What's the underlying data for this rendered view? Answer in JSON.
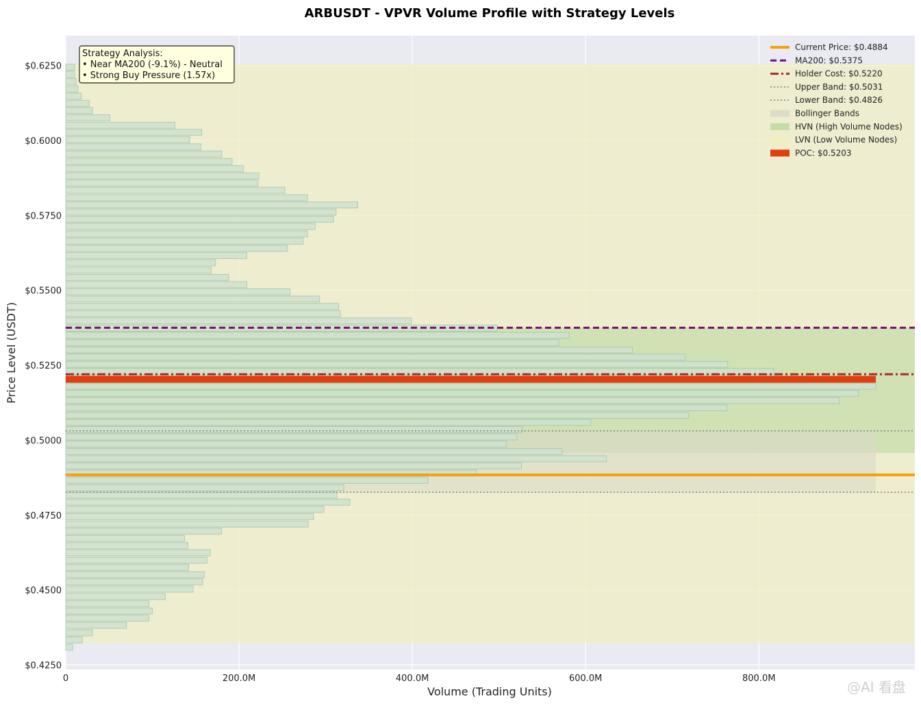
{
  "chart_data": {
    "type": "bar",
    "orientation": "horizontal",
    "title": "ARBUSDT - VPVR Volume Profile with Strategy Levels",
    "xlabel": "Volume (Trading Units)",
    "ylabel": "Price Level (USDT)",
    "xlim": [
      0,
      980
    ],
    "ylim": [
      0.4235,
      0.635
    ],
    "x_ticks": [
      {
        "value": 0,
        "label": "0"
      },
      {
        "value": 200,
        "label": "200.0M"
      },
      {
        "value": 400,
        "label": "400.0M"
      },
      {
        "value": 600,
        "label": "600.0M"
      },
      {
        "value": 800,
        "label": "800.0M"
      }
    ],
    "y_ticks": [
      {
        "value": 0.425,
        "label": "$0.4250"
      },
      {
        "value": 0.45,
        "label": "$0.4500"
      },
      {
        "value": 0.475,
        "label": "$0.4750"
      },
      {
        "value": 0.5,
        "label": "$0.5000"
      },
      {
        "value": 0.525,
        "label": "$0.5250"
      },
      {
        "value": 0.55,
        "label": "$0.5500"
      },
      {
        "value": 0.575,
        "label": "$0.5750"
      },
      {
        "value": 0.6,
        "label": "$0.6000"
      },
      {
        "value": 0.625,
        "label": "$0.6250"
      }
    ],
    "grid": true,
    "bin_height": 0.00242,
    "bins": {
      "prices": [
        0.4309,
        0.4333,
        0.4357,
        0.4382,
        0.4406,
        0.443,
        0.4454,
        0.4478,
        0.4503,
        0.4527,
        0.4551,
        0.4575,
        0.4599,
        0.4624,
        0.4648,
        0.4672,
        0.4696,
        0.472,
        0.4745,
        0.4769,
        0.4793,
        0.4817,
        0.4841,
        0.4866,
        0.489,
        0.4914,
        0.4938,
        0.4962,
        0.4987,
        0.5011,
        0.5035,
        0.5059,
        0.5083,
        0.5108,
        0.5132,
        0.5156,
        0.518,
        0.5204,
        0.5229,
        0.5253,
        0.5277,
        0.5301,
        0.5325,
        0.535,
        0.5374,
        0.5398,
        0.5422,
        0.5446,
        0.5471,
        0.5495,
        0.5519,
        0.5543,
        0.5567,
        0.5592,
        0.5616,
        0.564,
        0.5664,
        0.5688,
        0.5713,
        0.5737,
        0.5761,
        0.5785,
        0.5809,
        0.5834,
        0.5858,
        0.5882,
        0.5906,
        0.593,
        0.5955,
        0.5979,
        0.6003,
        0.6027,
        0.6051,
        0.6076,
        0.61,
        0.6124,
        0.6148,
        0.6172,
        0.6197,
        0.6221,
        0.6245
      ],
      "volumes": [
        8,
        19,
        31,
        70,
        96,
        100,
        96,
        115,
        147,
        158,
        160,
        142,
        163,
        167,
        141,
        137,
        180,
        280,
        286,
        298,
        328,
        313,
        321,
        418,
        474,
        526,
        624,
        573,
        509,
        521,
        527,
        606,
        719,
        763,
        893,
        915,
        935,
        859,
        817,
        764,
        715,
        654,
        569,
        581,
        498,
        399,
        317,
        315,
        293,
        259,
        209,
        188,
        168,
        173,
        209,
        256,
        274,
        279,
        288,
        309,
        312,
        337,
        279,
        253,
        222,
        223,
        205,
        192,
        180,
        156,
        143,
        157,
        126,
        51,
        31,
        27,
        18,
        14,
        12,
        10,
        10
      ]
    },
    "series": [
      {
        "name": "Current Price: $0.4884",
        "value": 0.4884,
        "color": "#f5a10c",
        "style": "solid"
      },
      {
        "name": "MA200: $0.5375",
        "value": 0.5375,
        "color": "#7a0f73",
        "style": "dashed"
      },
      {
        "name": "Holder Cost: $0.5220",
        "value": 0.522,
        "color": "#a52a2a",
        "style": "dashdot"
      },
      {
        "name": "Upper Band: $0.5031",
        "value": 0.5031,
        "color": "#808080",
        "style": "dotted"
      },
      {
        "name": "Lower Band: $0.4826",
        "value": 0.4826,
        "color": "#808080",
        "style": "dotted"
      },
      {
        "name": "Bollinger Bands",
        "range": [
          0.4826,
          0.5031
        ],
        "color": "#d8d8c8",
        "style": "fill"
      },
      {
        "name": "HVN (High Volume Nodes)",
        "range": [
          0.4957,
          0.5375
        ],
        "color": "#bcd9a0",
        "style": "fill"
      },
      {
        "name": "LVN (Low Volume Nodes)",
        "range": [
          0.4323,
          0.6255
        ],
        "color": "#f0eec0",
        "style": "fill"
      },
      {
        "name": "POC: $0.5203",
        "value": 0.5203,
        "color": "#e04010",
        "style": "poc"
      }
    ],
    "colors": {
      "plot_bg": "#eaeaf2",
      "bar_fill": "#cfe2cf",
      "bar_edge": "#a7c4b0",
      "grid": "#ffffff"
    },
    "annotations": {
      "lines": [
        "Strategy Analysis:",
        "• Near MA200 (-9.1%) - Neutral",
        "• Strong Buy Pressure (1.57x)"
      ]
    },
    "legend_position": "top-right"
  },
  "watermark": "@AI 看盘"
}
